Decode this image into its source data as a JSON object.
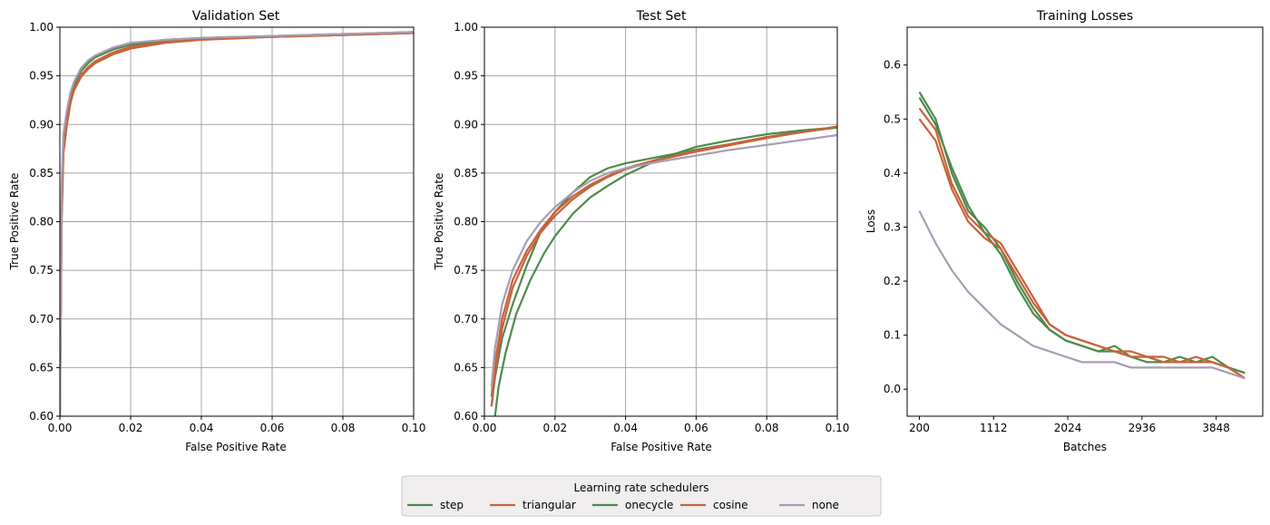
{
  "colors": {
    "step": "#4e8a4c",
    "triangular": "#c8623a",
    "onecycle": "#4e8a4c",
    "cosine": "#c8623a",
    "none": "#a89cb4",
    "grid": "#a8a0ac",
    "legend_bg": "#f0eeee",
    "legend_border": "#c8c8c8"
  },
  "legend": {
    "title": "Learning rate schedulers",
    "placement": "bottom-center",
    "entries": [
      "step",
      "triangular",
      "onecycle",
      "cosine",
      "none"
    ]
  },
  "chart_data": [
    {
      "type": "line",
      "title": "Validation Set",
      "xlabel": "False Positive Rate",
      "ylabel": "True Positive Rate",
      "xlim": [
        0,
        0.1
      ],
      "ylim": [
        0.6,
        1.0
      ],
      "xticks": [
        0.0,
        0.02,
        0.04,
        0.06,
        0.08,
        0.1
      ],
      "xticklabels": [
        "0.00",
        "0.02",
        "0.04",
        "0.06",
        "0.08",
        "0.10"
      ],
      "yticks": [
        0.6,
        0.65,
        0.7,
        0.75,
        0.8,
        0.85,
        0.9,
        0.95,
        1.0
      ],
      "yticklabels": [
        "0.60",
        "0.65",
        "0.70",
        "0.75",
        "0.80",
        "0.85",
        "0.90",
        "0.95",
        "1.00"
      ],
      "grid": true,
      "series": [
        {
          "name": "step",
          "x": [
            0,
            0.0005,
            0.001,
            0.002,
            0.003,
            0.004,
            0.006,
            0.008,
            0.01,
            0.015,
            0.02,
            0.03,
            0.04,
            0.06,
            0.08,
            0.1
          ],
          "y": [
            0.6,
            0.82,
            0.88,
            0.91,
            0.93,
            0.94,
            0.955,
            0.963,
            0.969,
            0.977,
            0.982,
            0.986,
            0.988,
            0.99,
            0.992,
            0.994
          ]
        },
        {
          "name": "triangular",
          "x": [
            0,
            0.0005,
            0.001,
            0.002,
            0.003,
            0.004,
            0.006,
            0.008,
            0.01,
            0.015,
            0.02,
            0.03,
            0.04,
            0.06,
            0.08,
            0.1
          ],
          "y": [
            0.6,
            0.81,
            0.875,
            0.905,
            0.925,
            0.937,
            0.951,
            0.959,
            0.965,
            0.974,
            0.98,
            0.985,
            0.988,
            0.99,
            0.992,
            0.994
          ]
        },
        {
          "name": "onecycle",
          "x": [
            0,
            0.0005,
            0.001,
            0.002,
            0.003,
            0.004,
            0.006,
            0.008,
            0.01,
            0.015,
            0.02,
            0.03,
            0.04,
            0.06,
            0.08,
            0.1
          ],
          "y": [
            0.6,
            0.83,
            0.885,
            0.912,
            0.931,
            0.942,
            0.957,
            0.965,
            0.97,
            0.978,
            0.983,
            0.987,
            0.989,
            0.991,
            0.993,
            0.995
          ]
        },
        {
          "name": "cosine",
          "x": [
            0,
            0.0005,
            0.001,
            0.002,
            0.003,
            0.004,
            0.006,
            0.008,
            0.01,
            0.015,
            0.02,
            0.03,
            0.04,
            0.06,
            0.08,
            0.1
          ],
          "y": [
            0.6,
            0.8,
            0.87,
            0.9,
            0.922,
            0.935,
            0.949,
            0.957,
            0.963,
            0.972,
            0.978,
            0.984,
            0.987,
            0.99,
            0.992,
            0.994
          ]
        },
        {
          "name": "none",
          "x": [
            0,
            0.0005,
            0.001,
            0.002,
            0.003,
            0.004,
            0.006,
            0.008,
            0.01,
            0.015,
            0.02,
            0.03,
            0.04,
            0.06,
            0.08,
            0.1
          ],
          "y": [
            0.6,
            0.84,
            0.89,
            0.915,
            0.933,
            0.944,
            0.958,
            0.966,
            0.971,
            0.979,
            0.984,
            0.987,
            0.989,
            0.991,
            0.993,
            0.995
          ]
        }
      ]
    },
    {
      "type": "line",
      "title": "Test Set",
      "xlabel": "False Positive Rate",
      "ylabel": "True Positive Rate",
      "xlim": [
        0,
        0.1
      ],
      "ylim": [
        0.6,
        1.0
      ],
      "xticks": [
        0.0,
        0.02,
        0.04,
        0.06,
        0.08,
        0.1
      ],
      "xticklabels": [
        "0.00",
        "0.02",
        "0.04",
        "0.06",
        "0.08",
        "0.10"
      ],
      "yticks": [
        0.6,
        0.65,
        0.7,
        0.75,
        0.8,
        0.85,
        0.9,
        0.95,
        1.0
      ],
      "yticklabels": [
        "0.60",
        "0.65",
        "0.70",
        "0.75",
        "0.80",
        "0.85",
        "0.90",
        "0.95",
        "1.00"
      ],
      "grid": true,
      "series": [
        {
          "name": "step",
          "x": [
            0.002,
            0.003,
            0.005,
            0.008,
            0.012,
            0.016,
            0.02,
            0.025,
            0.03,
            0.035,
            0.04,
            0.05,
            0.06,
            0.07,
            0.08,
            0.09,
            0.1
          ],
          "y": [
            0.61,
            0.64,
            0.68,
            0.715,
            0.755,
            0.79,
            0.81,
            0.83,
            0.846,
            0.855,
            0.86,
            0.867,
            0.874,
            0.88,
            0.887,
            0.893,
            0.897
          ]
        },
        {
          "name": "triangular",
          "x": [
            0.002,
            0.003,
            0.005,
            0.008,
            0.012,
            0.016,
            0.02,
            0.025,
            0.03,
            0.035,
            0.04,
            0.05,
            0.06,
            0.07,
            0.08,
            0.09,
            0.1
          ],
          "y": [
            0.62,
            0.655,
            0.7,
            0.74,
            0.77,
            0.792,
            0.81,
            0.826,
            0.838,
            0.847,
            0.855,
            0.865,
            0.873,
            0.88,
            0.887,
            0.892,
            0.897
          ]
        },
        {
          "name": "onecycle",
          "x": [
            0.003,
            0.004,
            0.006,
            0.009,
            0.013,
            0.017,
            0.02,
            0.025,
            0.03,
            0.035,
            0.04,
            0.05,
            0.06,
            0.07,
            0.08,
            0.09,
            0.1
          ],
          "y": [
            0.6,
            0.63,
            0.665,
            0.705,
            0.74,
            0.768,
            0.785,
            0.808,
            0.825,
            0.837,
            0.848,
            0.865,
            0.877,
            0.884,
            0.89,
            0.894,
            0.897
          ]
        },
        {
          "name": "cosine",
          "x": [
            0.002,
            0.003,
            0.005,
            0.008,
            0.012,
            0.016,
            0.02,
            0.025,
            0.03,
            0.035,
            0.04,
            0.05,
            0.06,
            0.07,
            0.08,
            0.09,
            0.1
          ],
          "y": [
            0.61,
            0.645,
            0.69,
            0.732,
            0.765,
            0.789,
            0.806,
            0.823,
            0.836,
            0.846,
            0.854,
            0.864,
            0.872,
            0.879,
            0.886,
            0.892,
            0.898
          ]
        },
        {
          "name": "none",
          "x": [
            0.002,
            0.003,
            0.005,
            0.008,
            0.012,
            0.016,
            0.02,
            0.025,
            0.03,
            0.035,
            0.04,
            0.05,
            0.06,
            0.07,
            0.08,
            0.09,
            0.1
          ],
          "y": [
            0.63,
            0.67,
            0.715,
            0.75,
            0.78,
            0.8,
            0.815,
            0.83,
            0.842,
            0.85,
            0.855,
            0.862,
            0.868,
            0.874,
            0.879,
            0.884,
            0.889
          ]
        }
      ]
    },
    {
      "type": "line",
      "title": "Training Losses",
      "xlabel": "Batches",
      "ylabel": "Loss",
      "xlim": [
        50,
        4420
      ],
      "ylim": [
        -0.05,
        0.67
      ],
      "xticks": [
        200,
        1112,
        2024,
        2936,
        3848
      ],
      "xticklabels": [
        "200",
        "1112",
        "2024",
        "2936",
        "3848"
      ],
      "yticks": [
        0.0,
        0.1,
        0.2,
        0.3,
        0.4,
        0.5,
        0.6
      ],
      "yticklabels": [
        "0.0",
        "0.1",
        "0.2",
        "0.3",
        "0.4",
        "0.5",
        "0.6"
      ],
      "grid": false,
      "series": [
        {
          "name": "step",
          "x": [
            200,
            400,
            600,
            800,
            1000,
            1200,
            1400,
            1600,
            1800,
            2000,
            2200,
            2400,
            2600,
            2800,
            3000,
            3200,
            3400,
            3600,
            3800,
            4000,
            4200
          ],
          "y": [
            0.55,
            0.5,
            0.4,
            0.33,
            0.3,
            0.26,
            0.2,
            0.15,
            0.11,
            0.09,
            0.08,
            0.07,
            0.08,
            0.06,
            0.06,
            0.05,
            0.06,
            0.05,
            0.06,
            0.04,
            0.03
          ]
        },
        {
          "name": "triangular",
          "x": [
            200,
            400,
            600,
            800,
            1000,
            1200,
            1400,
            1600,
            1800,
            2000,
            2200,
            2400,
            2600,
            2800,
            3000,
            3200,
            3400,
            3600,
            3800,
            4000,
            4200
          ],
          "y": [
            0.52,
            0.48,
            0.38,
            0.32,
            0.29,
            0.27,
            0.22,
            0.17,
            0.12,
            0.1,
            0.09,
            0.08,
            0.07,
            0.07,
            0.06,
            0.06,
            0.05,
            0.06,
            0.05,
            0.04,
            0.02
          ]
        },
        {
          "name": "onecycle",
          "x": [
            200,
            400,
            600,
            800,
            1000,
            1200,
            1400,
            1600,
            1800,
            2000,
            2200,
            2400,
            2600,
            2800,
            3000,
            3200,
            3400,
            3600,
            3800,
            4000,
            4200
          ],
          "y": [
            0.54,
            0.49,
            0.41,
            0.34,
            0.29,
            0.25,
            0.19,
            0.14,
            0.11,
            0.09,
            0.08,
            0.07,
            0.07,
            0.06,
            0.05,
            0.05,
            0.05,
            0.05,
            0.05,
            0.04,
            0.03
          ]
        },
        {
          "name": "cosine",
          "x": [
            200,
            400,
            600,
            800,
            1000,
            1200,
            1400,
            1600,
            1800,
            2000,
            2200,
            2400,
            2600,
            2800,
            3000,
            3200,
            3400,
            3600,
            3800,
            4000,
            4200
          ],
          "y": [
            0.5,
            0.46,
            0.37,
            0.31,
            0.28,
            0.26,
            0.21,
            0.16,
            0.12,
            0.1,
            0.09,
            0.08,
            0.07,
            0.06,
            0.06,
            0.05,
            0.05,
            0.05,
            0.05,
            0.04,
            0.02
          ]
        },
        {
          "name": "none",
          "x": [
            200,
            400,
            600,
            800,
            1000,
            1200,
            1400,
            1600,
            1800,
            2000,
            2200,
            2400,
            2600,
            2800,
            3000,
            3200,
            3400,
            3600,
            3800,
            4000,
            4200
          ],
          "y": [
            0.33,
            0.27,
            0.22,
            0.18,
            0.15,
            0.12,
            0.1,
            0.08,
            0.07,
            0.06,
            0.05,
            0.05,
            0.05,
            0.04,
            0.04,
            0.04,
            0.04,
            0.04,
            0.04,
            0.03,
            0.02
          ]
        }
      ]
    }
  ]
}
